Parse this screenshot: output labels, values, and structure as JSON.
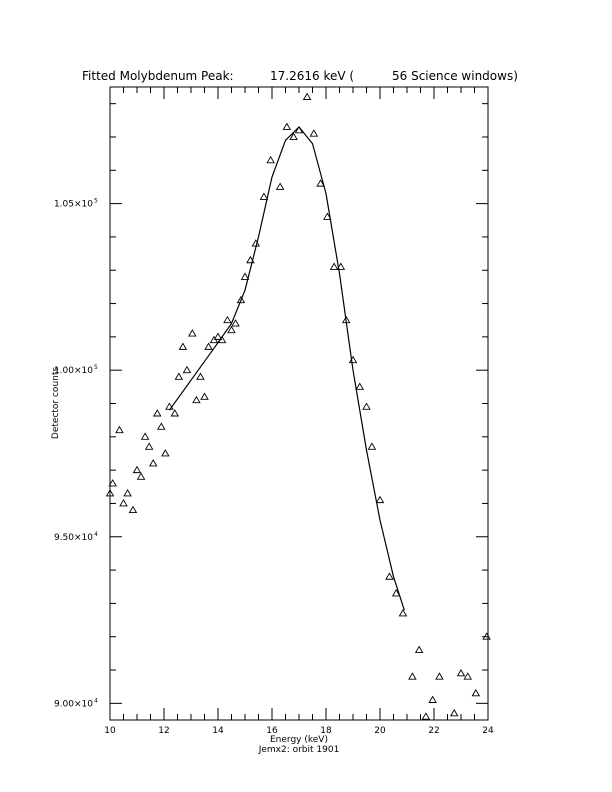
{
  "chart_data": {
    "type": "scatter",
    "title": {
      "left": "Fitted Molybdenum Peak:",
      "value": "17.2616 keV (",
      "right": "56 Science windows)"
    },
    "xlabel": "Energy (keV)",
    "subtitle": "Jemx2: orbit 1901",
    "ylabel": "Detector counts",
    "xlim": [
      10,
      24
    ],
    "ylim": [
      89500,
      108500
    ],
    "grid": false,
    "x_ticks": [
      {
        "value": 10,
        "label": "10"
      },
      {
        "value": 12,
        "label": "12"
      },
      {
        "value": 14,
        "label": "14"
      },
      {
        "value": 16,
        "label": "16"
      },
      {
        "value": 18,
        "label": "18"
      },
      {
        "value": 20,
        "label": "20"
      },
      {
        "value": 22,
        "label": "22"
      },
      {
        "value": 24,
        "label": "24"
      }
    ],
    "y_ticks": [
      {
        "value": 90000,
        "mantissa": "9.00×10",
        "exp": "4"
      },
      {
        "value": 95000,
        "mantissa": "9.50×10",
        "exp": "4"
      },
      {
        "value": 100000,
        "mantissa": "1.00×10",
        "exp": "5"
      },
      {
        "value": 105000,
        "mantissa": "1.05×10",
        "exp": "5"
      }
    ],
    "series": [
      {
        "marker": "triangle",
        "points": [
          [
            10.0,
            96300
          ],
          [
            10.1,
            96600
          ],
          [
            10.35,
            98200
          ],
          [
            10.5,
            96000
          ],
          [
            10.65,
            96300
          ],
          [
            10.85,
            95800
          ],
          [
            11.0,
            97000
          ],
          [
            11.15,
            96800
          ],
          [
            11.3,
            98000
          ],
          [
            11.45,
            97700
          ],
          [
            11.6,
            97200
          ],
          [
            11.75,
            98700
          ],
          [
            11.9,
            98300
          ],
          [
            12.05,
            97500
          ],
          [
            12.2,
            98900
          ],
          [
            12.4,
            98700
          ],
          [
            12.55,
            99800
          ],
          [
            12.7,
            100700
          ],
          [
            12.85,
            100000
          ],
          [
            13.05,
            101100
          ],
          [
            13.2,
            99100
          ],
          [
            13.35,
            99800
          ],
          [
            13.5,
            99200
          ],
          [
            13.65,
            100700
          ],
          [
            13.85,
            100900
          ],
          [
            14.0,
            101000
          ],
          [
            14.15,
            100900
          ],
          [
            14.35,
            101500
          ],
          [
            14.5,
            101200
          ],
          [
            14.65,
            101400
          ],
          [
            14.85,
            102100
          ],
          [
            15.0,
            102800
          ],
          [
            15.2,
            103300
          ],
          [
            15.4,
            103800
          ],
          [
            15.7,
            105200
          ],
          [
            15.95,
            106300
          ],
          [
            16.3,
            105500
          ],
          [
            16.55,
            107300
          ],
          [
            16.8,
            107000
          ],
          [
            17.0,
            107200
          ],
          [
            17.3,
            108200
          ],
          [
            17.55,
            107100
          ],
          [
            17.8,
            105600
          ],
          [
            18.05,
            104600
          ],
          [
            18.3,
            103100
          ],
          [
            18.55,
            103100
          ],
          [
            18.75,
            101500
          ],
          [
            19.0,
            100300
          ],
          [
            19.25,
            99500
          ],
          [
            19.5,
            98900
          ],
          [
            19.7,
            97700
          ],
          [
            20.0,
            96100
          ],
          [
            20.35,
            93800
          ],
          [
            20.6,
            93300
          ],
          [
            20.85,
            92700
          ],
          [
            21.2,
            90800
          ],
          [
            21.45,
            91600
          ],
          [
            21.7,
            89600
          ],
          [
            21.95,
            90100
          ],
          [
            22.2,
            90800
          ],
          [
            22.75,
            89700
          ],
          [
            23.0,
            90900
          ],
          [
            23.25,
            90800
          ],
          [
            23.55,
            90300
          ],
          [
            23.95,
            92000
          ]
        ]
      },
      {
        "marker": "none",
        "line": "solid",
        "points": [
          [
            12.2,
            98800
          ],
          [
            13.0,
            99700
          ],
          [
            13.8,
            100600
          ],
          [
            14.5,
            101400
          ],
          [
            15.0,
            102400
          ],
          [
            15.5,
            104000
          ],
          [
            16.0,
            105800
          ],
          [
            16.5,
            106900
          ],
          [
            17.0,
            107300
          ],
          [
            17.5,
            106800
          ],
          [
            18.0,
            105300
          ],
          [
            18.5,
            102900
          ],
          [
            19.0,
            100000
          ],
          [
            19.5,
            97600
          ],
          [
            20.0,
            95500
          ],
          [
            20.5,
            93800
          ],
          [
            20.9,
            92800
          ]
        ]
      }
    ]
  }
}
